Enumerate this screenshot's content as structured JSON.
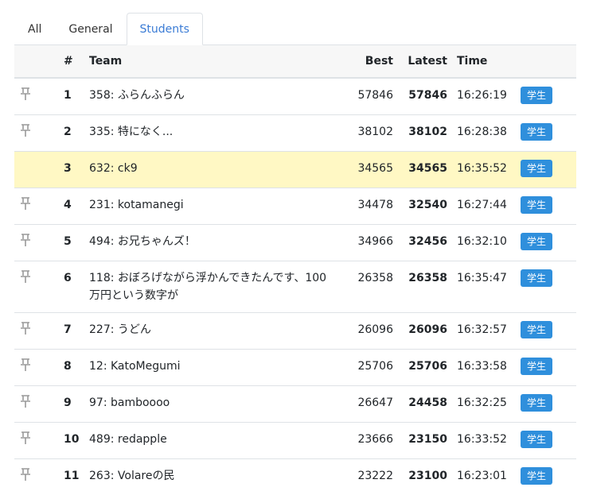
{
  "tabs": [
    "All",
    "General",
    "Students"
  ],
  "table": {
    "headers": [
      "#",
      "Team",
      "Best",
      "Latest",
      "Time"
    ],
    "rows": [
      {
        "rank": 1,
        "team": "358: ふらんふらん",
        "best": 57846,
        "latest": 57846,
        "time": "16:26:19",
        "badge": "学生"
      },
      {
        "rank": 2,
        "team": "335: 特になく...",
        "best": 38102,
        "latest": 38102,
        "time": "16:28:38",
        "badge": "学生"
      },
      {
        "rank": 3,
        "team": "632: ck9",
        "best": 34565,
        "latest": 34565,
        "time": "16:35:52",
        "badge": "学生"
      },
      {
        "rank": 4,
        "team": "231: kotamanegi",
        "best": 34478,
        "latest": 32540,
        "time": "16:27:44",
        "badge": "学生"
      },
      {
        "rank": 5,
        "team": "494: お兄ちゃんズ！",
        "best": 34966,
        "latest": 32456,
        "time": "16:32:10",
        "badge": "学生"
      },
      {
        "rank": 6,
        "team": "118: おぼろげながら浮かんできたんです、100万円という数字が",
        "best": 26358,
        "latest": 26358,
        "time": "16:35:47",
        "badge": "学生"
      },
      {
        "rank": 7,
        "team": "227: うどん",
        "best": 26096,
        "latest": 26096,
        "time": "16:32:57",
        "badge": "学生"
      },
      {
        "rank": 8,
        "team": "12: KatoMegumi",
        "best": 25706,
        "latest": 25706,
        "time": "16:33:58",
        "badge": "学生"
      },
      {
        "rank": 9,
        "team": "97: bamboooo",
        "best": 26647,
        "latest": 24458,
        "time": "16:32:25",
        "badge": "学生"
      },
      {
        "rank": 10,
        "team": "489: redapple",
        "best": 23666,
        "latest": 23150,
        "time": "16:33:52",
        "badge": "学生"
      },
      {
        "rank": 11,
        "team": "263: Volareの民",
        "best": 23222,
        "latest": 23100,
        "time": "16:23:01",
        "badge": "学生"
      }
    ]
  }
}
